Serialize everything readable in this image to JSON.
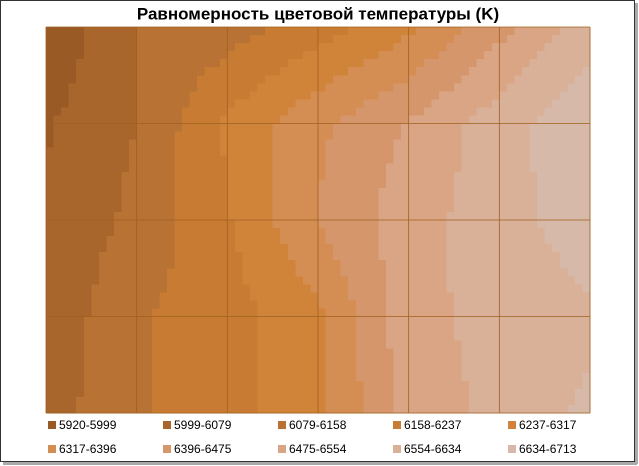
{
  "chart_data": {
    "type": "contour",
    "title": "Равномерность цветовой температуры (K)",
    "values": [
      [
        5930,
        6080,
        6120,
        6200,
        6300,
        6450,
        6600
      ],
      [
        5990,
        6080,
        6250,
        6380,
        6480,
        6600,
        6700
      ],
      [
        6010,
        6100,
        6230,
        6400,
        6520,
        6600,
        6680
      ],
      [
        6020,
        6150,
        6200,
        6300,
        6530,
        6580,
        6620
      ],
      [
        6040,
        6150,
        6200,
        6300,
        6500,
        6580,
        6650
      ]
    ],
    "series": [
      {
        "name": "5920-5999",
        "color": "#9a5a26"
      },
      {
        "name": "5999-6079",
        "color": "#a8652c"
      },
      {
        "name": "6079-6158",
        "color": "#b87233"
      },
      {
        "name": "6158-6237",
        "color": "#c87b32"
      },
      {
        "name": "6237-6317",
        "color": "#d0843a"
      },
      {
        "name": "6317-6396",
        "color": "#d48d52"
      },
      {
        "name": "6396-6475",
        "color": "#d6966c"
      },
      {
        "name": "6475-6554",
        "color": "#d9a584"
      },
      {
        "name": "6554-6634",
        "color": "#d9b098"
      },
      {
        "name": "6634-6713",
        "color": "#d6b9a8"
      }
    ],
    "grid": true
  }
}
